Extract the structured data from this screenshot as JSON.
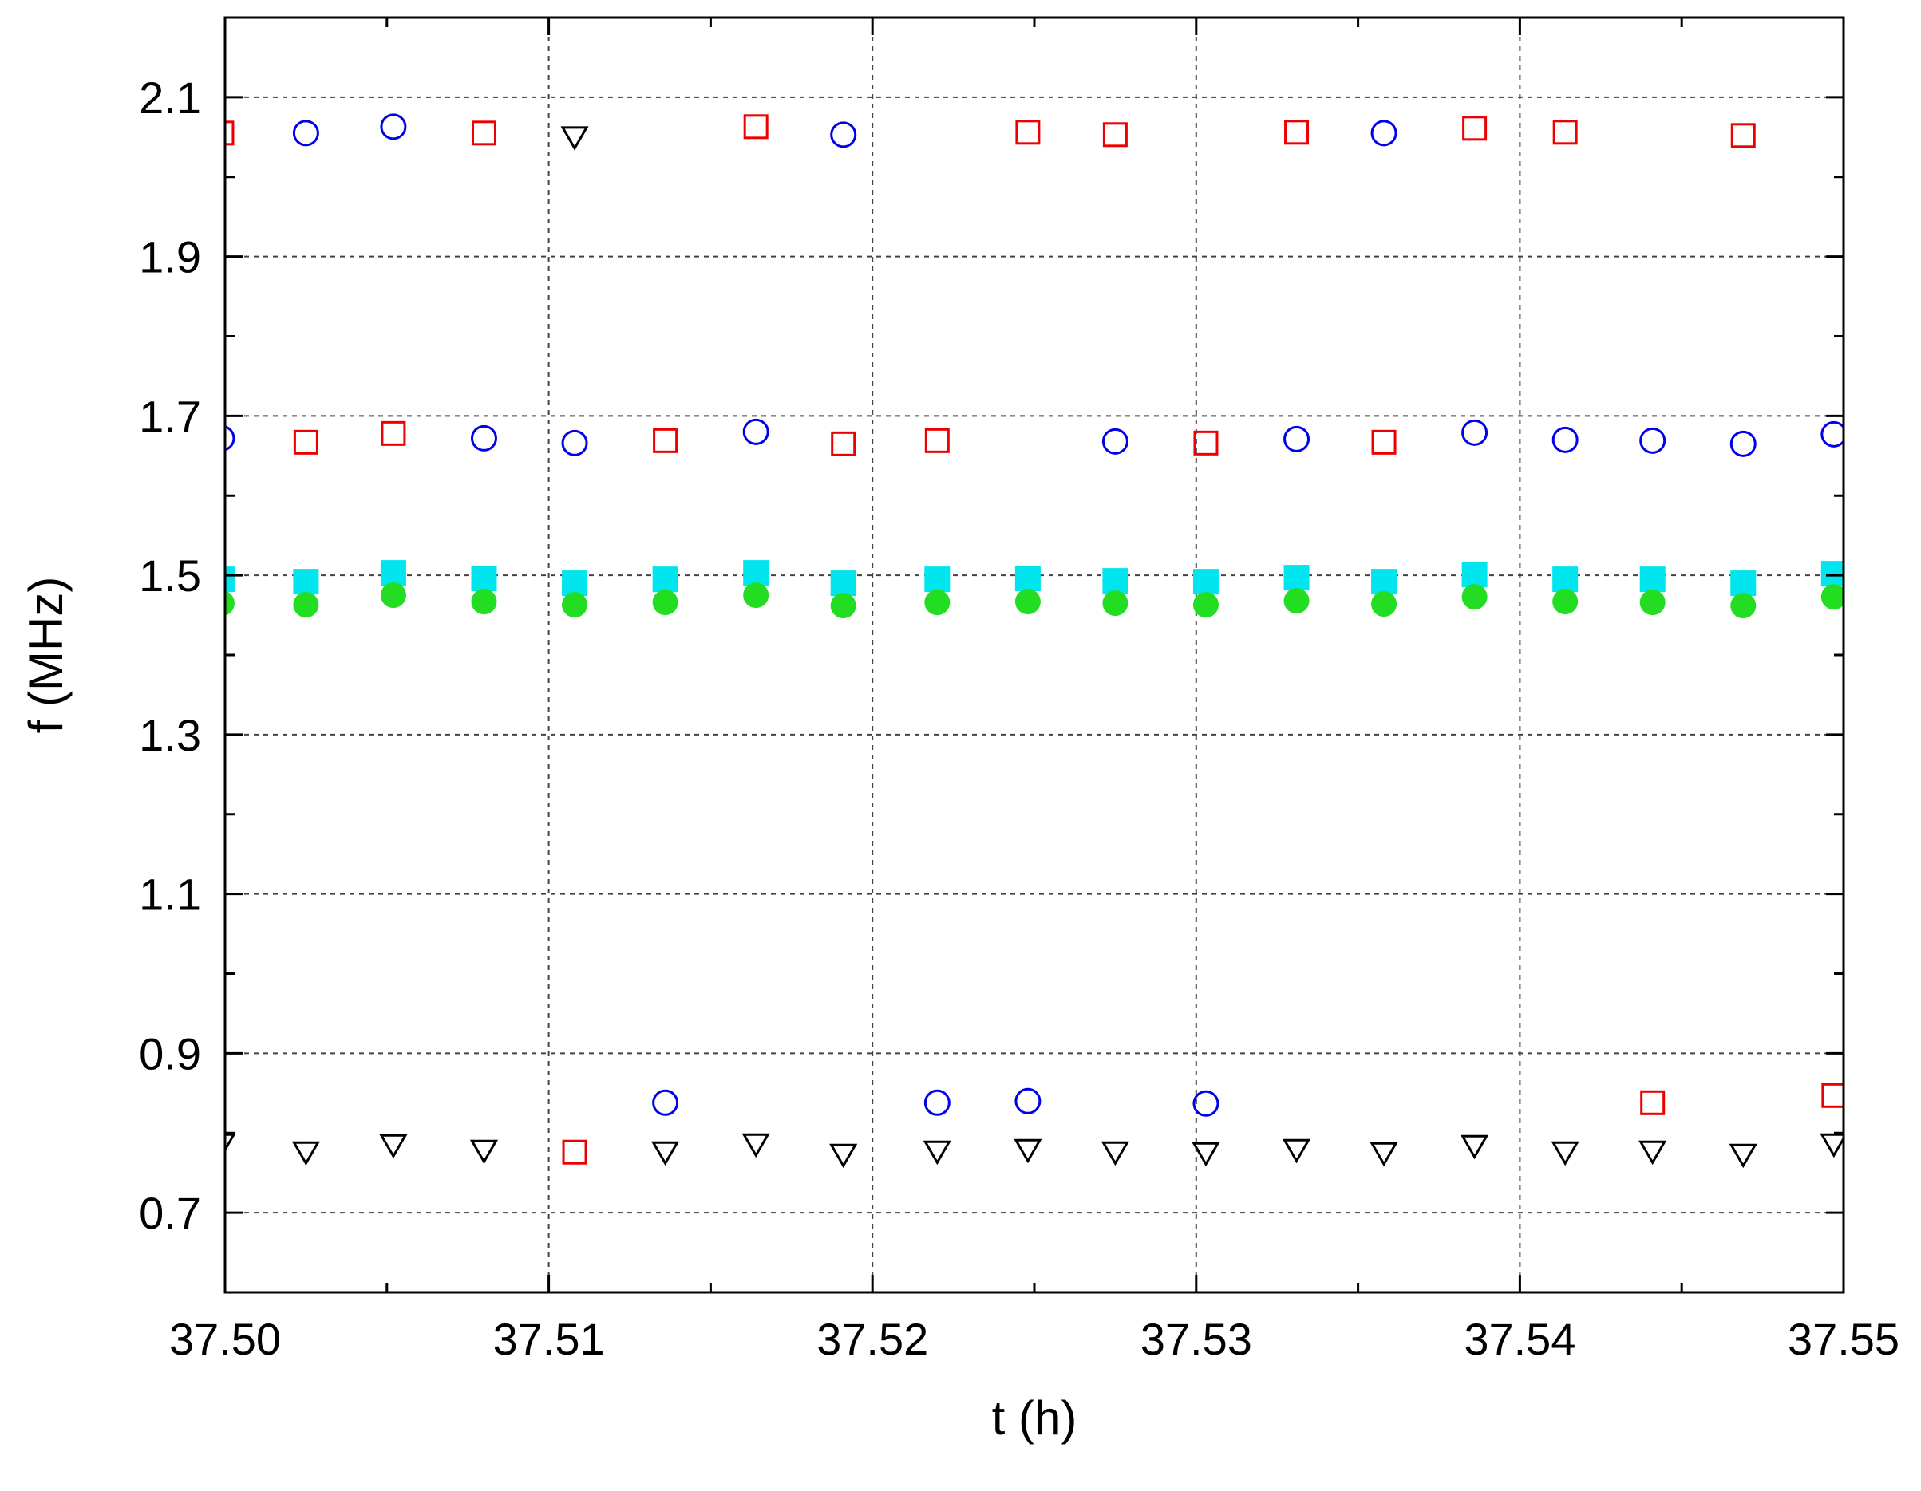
{
  "chart_data": {
    "type": "scatter",
    "xlabel": "t (h)",
    "ylabel": "f (MHz)",
    "xlim": [
      37.5,
      37.55
    ],
    "ylim": [
      0.6,
      2.2
    ],
    "x_ticks": [
      37.5,
      37.51,
      37.52,
      37.53,
      37.54,
      37.55
    ],
    "x_tick_labels": [
      "37.50",
      "37.51",
      "37.52",
      "37.53",
      "37.54",
      "37.55"
    ],
    "x_minor_ticks": [
      37.505,
      37.515,
      37.525,
      37.535,
      37.545
    ],
    "y_ticks": [
      0.7,
      0.9,
      1.1,
      1.3,
      1.5,
      1.7,
      1.9,
      2.1
    ],
    "y_tick_labels": [
      "0.7",
      "0.9",
      "1.1",
      "1.3",
      "1.5",
      "1.7",
      "1.9",
      "2.1"
    ],
    "y_minor_ticks": [
      0.8,
      1.0,
      1.2,
      1.4,
      1.6,
      1.8,
      2.0
    ],
    "grid": true,
    "series": [
      {
        "marker": "square-filled",
        "color": "#00e5ee",
        "points": [
          [
            37.4999,
            1.495
          ],
          [
            37.5025,
            1.492
          ],
          [
            37.5052,
            1.503
          ],
          [
            37.508,
            1.496
          ],
          [
            37.5108,
            1.49
          ],
          [
            37.5136,
            1.495
          ],
          [
            37.5164,
            1.503
          ],
          [
            37.5191,
            1.49
          ],
          [
            37.522,
            1.495
          ],
          [
            37.5248,
            1.496
          ],
          [
            37.5275,
            1.493
          ],
          [
            37.5303,
            1.492
          ],
          [
            37.5331,
            1.497
          ],
          [
            37.5358,
            1.492
          ],
          [
            37.5386,
            1.501
          ],
          [
            37.5414,
            1.495
          ],
          [
            37.5441,
            1.495
          ],
          [
            37.5469,
            1.49
          ],
          [
            37.5497,
            1.502
          ]
        ]
      },
      {
        "marker": "circle-filled",
        "color": "#22dd22",
        "points": [
          [
            37.4999,
            1.465
          ],
          [
            37.5025,
            1.463
          ],
          [
            37.5052,
            1.475
          ],
          [
            37.508,
            1.467
          ],
          [
            37.5108,
            1.463
          ],
          [
            37.5136,
            1.466
          ],
          [
            37.5164,
            1.475
          ],
          [
            37.5191,
            1.462
          ],
          [
            37.522,
            1.466
          ],
          [
            37.5248,
            1.467
          ],
          [
            37.5275,
            1.465
          ],
          [
            37.5303,
            1.463
          ],
          [
            37.5331,
            1.468
          ],
          [
            37.5358,
            1.464
          ],
          [
            37.5386,
            1.473
          ],
          [
            37.5414,
            1.467
          ],
          [
            37.5441,
            1.466
          ],
          [
            37.5469,
            1.462
          ],
          [
            37.5497,
            1.473
          ]
        ]
      },
      {
        "marker": "circle-open",
        "color": "#0000ee",
        "points": [
          [
            37.4999,
            1.672
          ],
          [
            37.5025,
            2.055
          ],
          [
            37.5052,
            2.063
          ],
          [
            37.508,
            1.672
          ],
          [
            37.5108,
            1.666
          ],
          [
            37.5136,
            0.838
          ],
          [
            37.5164,
            1.68
          ],
          [
            37.5191,
            2.053
          ],
          [
            37.522,
            0.838
          ],
          [
            37.5248,
            0.84
          ],
          [
            37.5275,
            1.668
          ],
          [
            37.5303,
            0.837
          ],
          [
            37.5331,
            1.671
          ],
          [
            37.5358,
            2.055
          ],
          [
            37.5386,
            1.679
          ],
          [
            37.5414,
            1.67
          ],
          [
            37.5441,
            1.669
          ],
          [
            37.5469,
            1.665
          ],
          [
            37.5497,
            1.677
          ]
        ]
      },
      {
        "marker": "square-open",
        "color": "#ee0000",
        "points": [
          [
            37.4999,
            2.055
          ],
          [
            37.5025,
            1.667
          ],
          [
            37.5052,
            1.678
          ],
          [
            37.508,
            2.055
          ],
          [
            37.5108,
            0.776
          ],
          [
            37.5136,
            1.669
          ],
          [
            37.5164,
            2.063
          ],
          [
            37.5191,
            1.665
          ],
          [
            37.522,
            1.669
          ],
          [
            37.5248,
            2.056
          ],
          [
            37.5275,
            2.053
          ],
          [
            37.5303,
            1.666
          ],
          [
            37.5331,
            2.056
          ],
          [
            37.5358,
            1.667
          ],
          [
            37.5386,
            2.061
          ],
          [
            37.5414,
            2.056
          ],
          [
            37.5441,
            0.838
          ],
          [
            37.5469,
            2.052
          ],
          [
            37.5497,
            0.847
          ]
        ]
      },
      {
        "marker": "triangle-down-open",
        "color": "#000000",
        "points": [
          [
            37.4999,
            0.786
          ],
          [
            37.5025,
            0.776
          ],
          [
            37.5052,
            0.785
          ],
          [
            37.508,
            0.778
          ],
          [
            37.5108,
            2.05
          ],
          [
            37.5136,
            0.776
          ],
          [
            37.5164,
            0.786
          ],
          [
            37.5191,
            0.773
          ],
          [
            37.522,
            0.777
          ],
          [
            37.5248,
            0.779
          ],
          [
            37.5275,
            0.776
          ],
          [
            37.5303,
            0.775
          ],
          [
            37.5331,
            0.779
          ],
          [
            37.5358,
            0.775
          ],
          [
            37.5386,
            0.784
          ],
          [
            37.5414,
            0.776
          ],
          [
            37.5441,
            0.777
          ],
          [
            37.5469,
            0.773
          ],
          [
            37.5497,
            0.786
          ]
        ]
      }
    ]
  }
}
